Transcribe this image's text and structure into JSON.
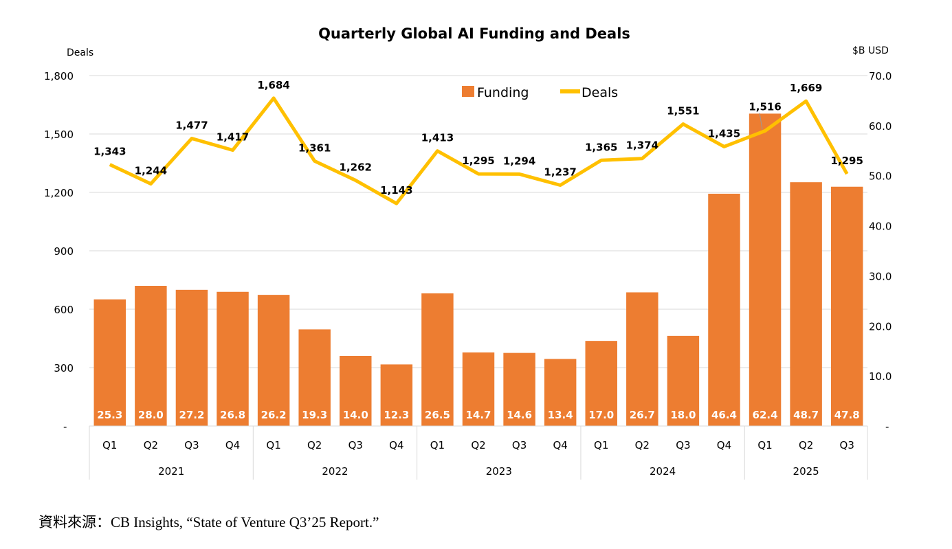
{
  "chart_data": {
    "type": "bar+line",
    "title": "Quarterly Global AI Funding and Deals",
    "ylabel_left": "Deals",
    "ylabel_right": "$B USD",
    "ylim_left": [
      0,
      1800
    ],
    "ylim_right": [
      0,
      70
    ],
    "yticks_left": [
      "-",
      "300",
      "600",
      "900",
      "1,200",
      "1,500",
      "1,800"
    ],
    "yticks_right": [
      "-",
      "10.0",
      "20.0",
      "30.0",
      "40.0",
      "50.0",
      "60.0",
      "70.0"
    ],
    "grid": true,
    "legend_position": "top-center",
    "quarters": [
      "Q1",
      "Q2",
      "Q3",
      "Q4",
      "Q1",
      "Q2",
      "Q3",
      "Q4",
      "Q1",
      "Q2",
      "Q3",
      "Q4",
      "Q1",
      "Q2",
      "Q3",
      "Q4",
      "Q1",
      "Q2",
      "Q3"
    ],
    "years": [
      {
        "label": "2021",
        "count": 4
      },
      {
        "label": "2022",
        "count": 4
      },
      {
        "label": "2023",
        "count": 4
      },
      {
        "label": "2024",
        "count": 4
      },
      {
        "label": "2025",
        "count": 3
      }
    ],
    "series": [
      {
        "name": "Funding",
        "type": "bar",
        "axis": "right",
        "color": "#ED7D31",
        "values": [
          25.3,
          28.0,
          27.2,
          26.8,
          26.2,
          19.3,
          14.0,
          12.3,
          26.5,
          14.7,
          14.6,
          13.4,
          17.0,
          26.7,
          18.0,
          46.4,
          62.4,
          48.7,
          47.8
        ],
        "labels": [
          "25.3",
          "28.0",
          "27.2",
          "26.8",
          "26.2",
          "19.3",
          "14.0",
          "12.3",
          "26.5",
          "14.7",
          "14.6",
          "13.4",
          "17.0",
          "26.7",
          "18.0",
          "46.4",
          "62.4",
          "48.7",
          "47.8"
        ]
      },
      {
        "name": "Deals",
        "type": "line",
        "axis": "left",
        "color": "#FFC000",
        "values": [
          1343,
          1244,
          1477,
          1417,
          1684,
          1361,
          1262,
          1143,
          1413,
          1295,
          1294,
          1237,
          1365,
          1374,
          1551,
          1435,
          1516,
          1669,
          1295
        ],
        "labels": [
          "1,343",
          "1,244",
          "1,477",
          "1,417",
          "1,684",
          "1,361",
          "1,262",
          "1,143",
          "1,413",
          "1,295",
          "1,294",
          "1,237",
          "1,365",
          "1,374",
          "1,551",
          "1,435",
          "1,516",
          "1,669",
          "1,295"
        ]
      }
    ]
  },
  "source": "資料來源：CB Insights, “State of Venture Q3’25 Report.”"
}
